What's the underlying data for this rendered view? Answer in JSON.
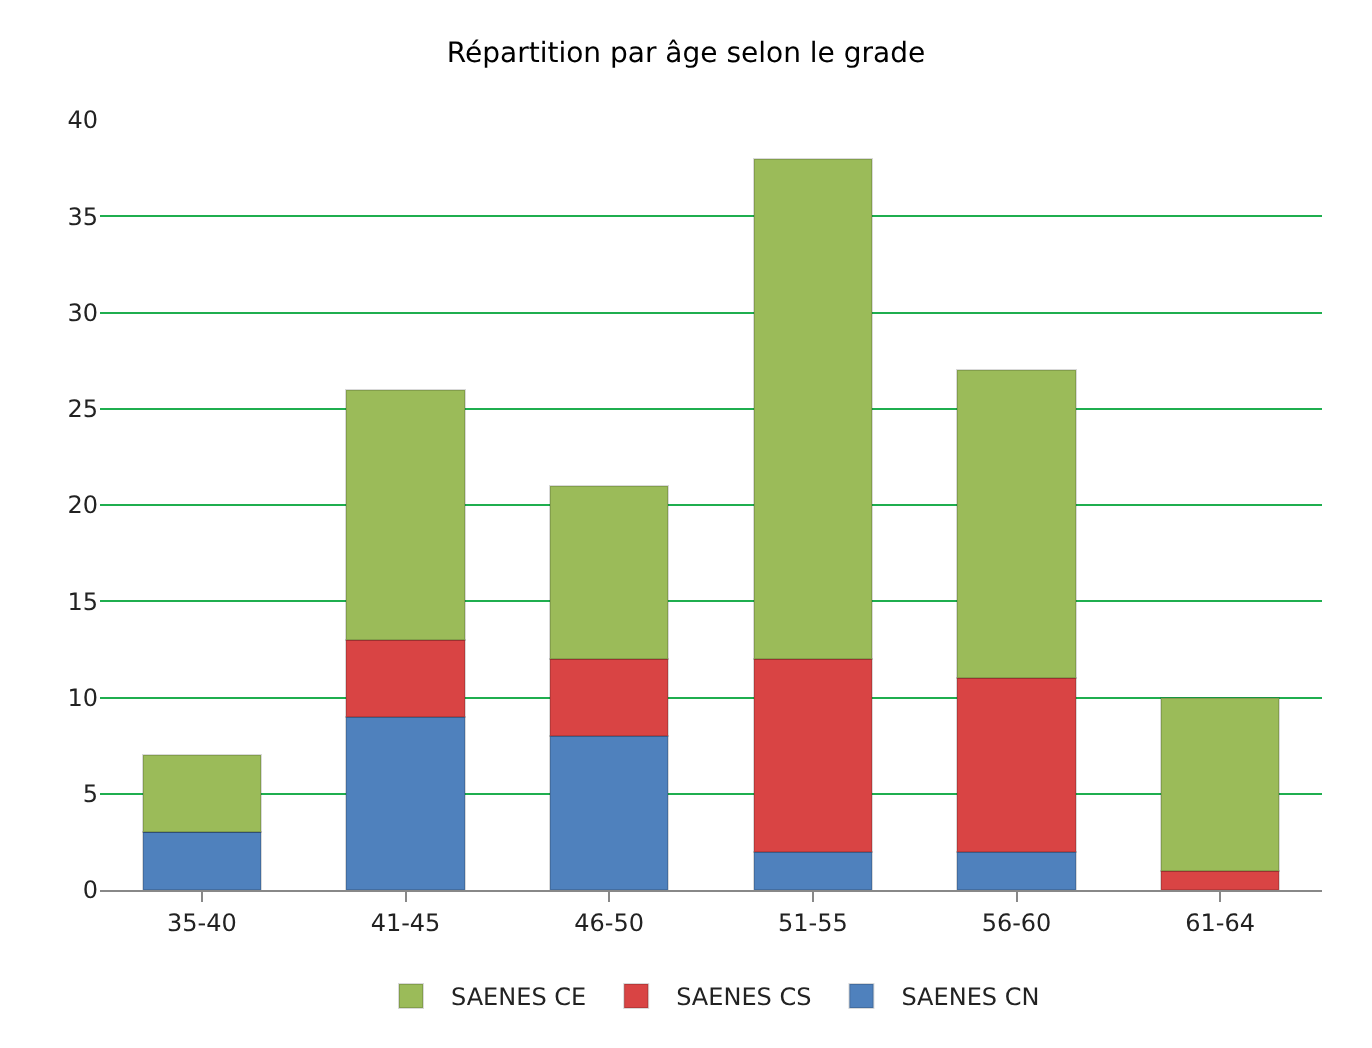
{
  "chart_data": {
    "type": "bar",
    "title": "Répartition par âge selon le grade",
    "categories": [
      "35-40",
      "41-45",
      "46-50",
      "51-55",
      "56-60",
      "61-64"
    ],
    "stacked": true,
    "series": [
      {
        "name": "SAENES CN",
        "color": "#4f81bd",
        "values": [
          3,
          9,
          8,
          2,
          2,
          0
        ]
      },
      {
        "name": "SAENES CS",
        "color": "#d94444",
        "values": [
          0,
          4,
          4,
          10,
          9,
          1
        ]
      },
      {
        "name": "SAENES CE",
        "color": "#9bbb59",
        "values": [
          4,
          13,
          9,
          26,
          16,
          9
        ]
      }
    ],
    "ylim": [
      0,
      40
    ],
    "yticks": [
      0,
      5,
      10,
      15,
      20,
      25,
      30,
      35,
      40
    ],
    "grid": "y",
    "legend": "bottom"
  }
}
